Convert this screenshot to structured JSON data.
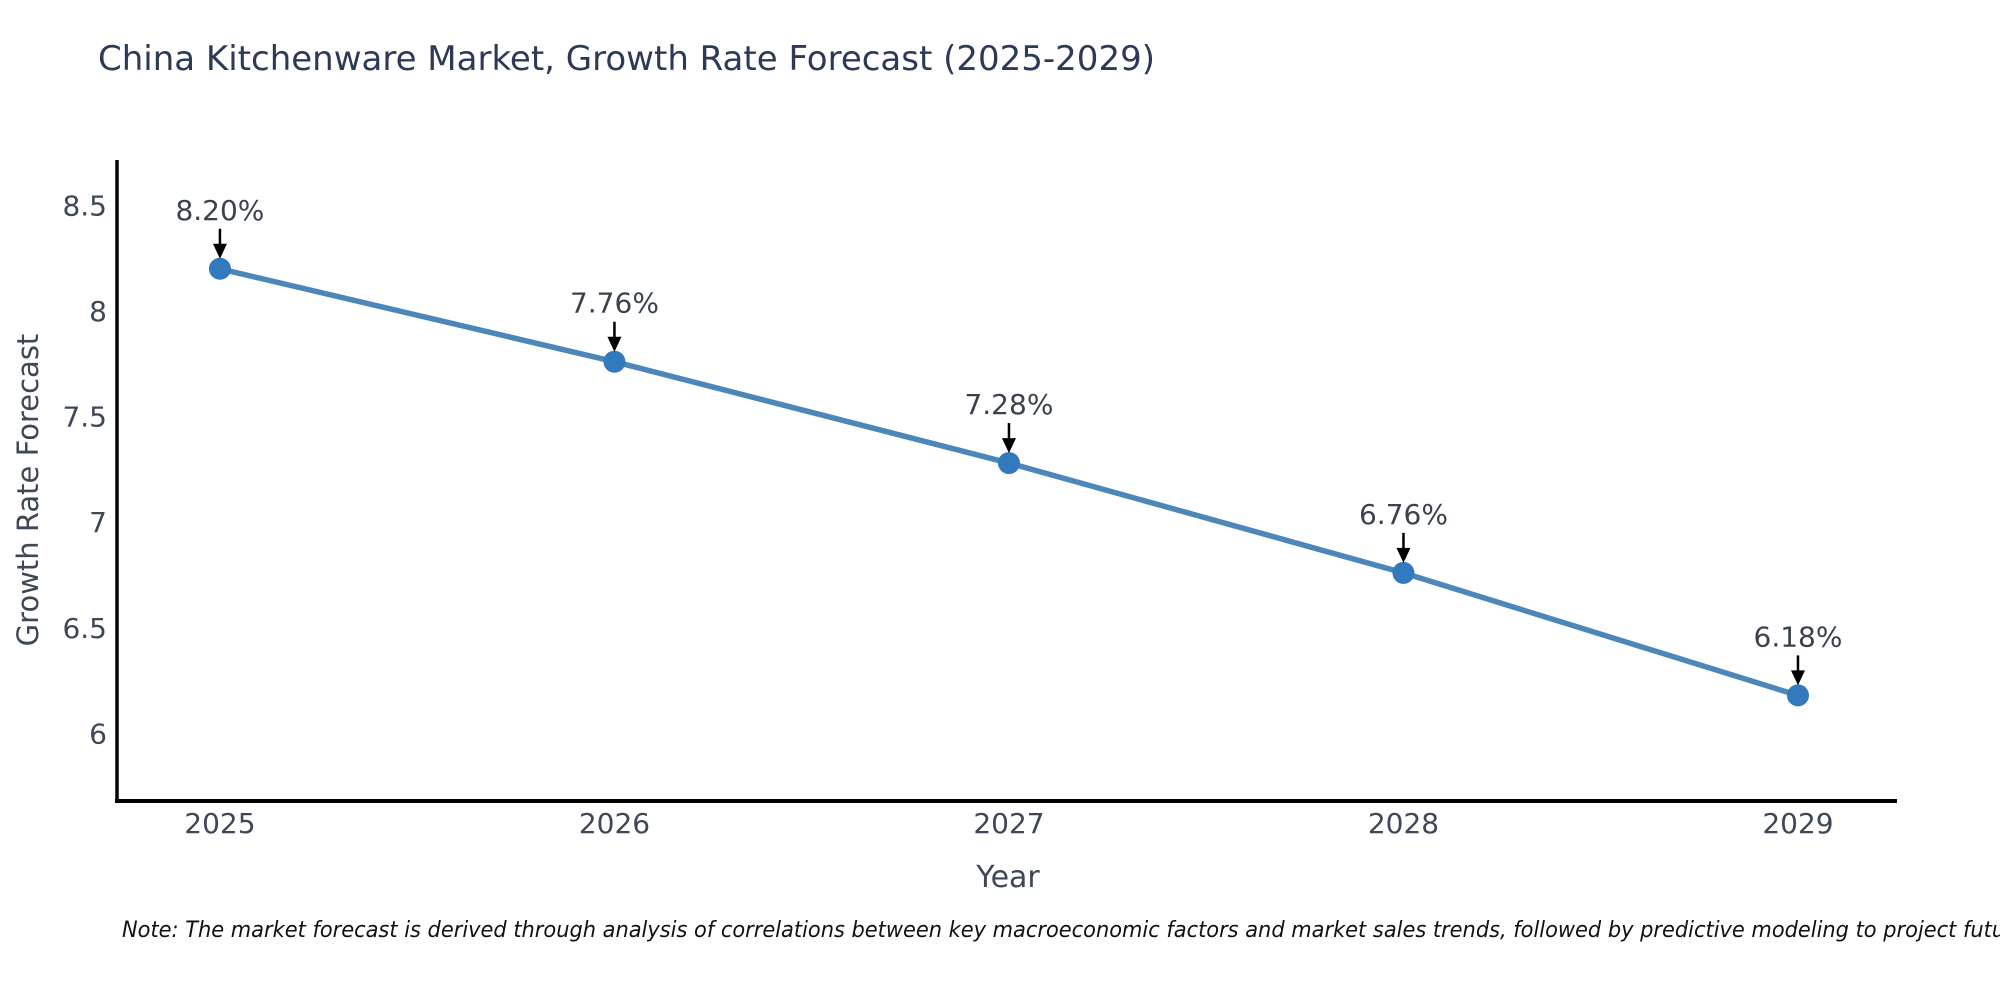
{
  "title": "China Kitchenware Market, Growth Rate Forecast (2025-2029)",
  "note": "Note: The market forecast is derived through analysis of correlations between key macroeconomic factors and market sales trends, followed by predictive modeling to project future sales",
  "chart_data": {
    "type": "line",
    "title": "China Kitchenware Market, Growth Rate Forecast (2025-2029)",
    "xlabel": "Year",
    "ylabel": "Growth Rate Forecast",
    "x": [
      2025,
      2026,
      2027,
      2028,
      2029
    ],
    "series": [
      {
        "name": "Growth Rate Forecast",
        "values": [
          8.2,
          7.76,
          7.28,
          6.76,
          6.18
        ]
      }
    ],
    "point_labels": [
      "8.20%",
      "7.76%",
      "7.28%",
      "6.76%",
      "6.18%"
    ],
    "yticks": [
      8.5,
      8,
      7.5,
      7,
      6.5,
      6
    ],
    "ytick_labels": [
      "8.5",
      "8",
      "7.5",
      "7",
      "6.5",
      "6"
    ],
    "xtick_labels": [
      "2025",
      "2026",
      "2027",
      "2028",
      "2029"
    ],
    "ylim": [
      5.68,
      8.715
    ],
    "xlim": [
      2024.734,
      2029.251
    ],
    "grid": false,
    "legend": "none",
    "line_color": "#4d86b9",
    "marker_color": "#3279bd",
    "axis_color": "#000000",
    "annotation_arrow_color": "#000000",
    "title_color": "#2c3a57",
    "tick_label_color": "#3e4757"
  }
}
